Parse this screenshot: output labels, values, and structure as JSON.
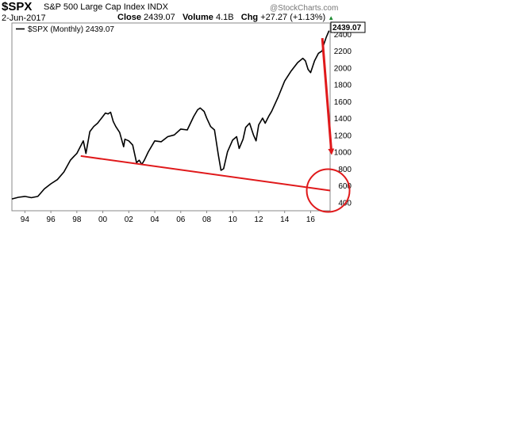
{
  "header": {
    "symbol": "$SPX",
    "name": "S&P 500 Large Cap Index",
    "exchange": "INDX",
    "date": "2-Jun-2017",
    "close_label": "Close",
    "close_value": "2439.07",
    "volume_label": "Volume",
    "volume_value": "4.1B",
    "change_label": "Chg",
    "change_value": "+27.27 (+1.13%)",
    "watermark": "@StockCharts.com"
  },
  "colors": {
    "price_line": "#000000",
    "annotation": "#e0191b",
    "change_up": "#1b8a2f"
  },
  "chart_data": {
    "type": "line",
    "legend": "$SPX (Monthly) 2439.07",
    "last_value": "2439.07",
    "x_tick_labels": [
      "94",
      "96",
      "98",
      "00",
      "02",
      "04",
      "06",
      "08",
      "10",
      "12",
      "14",
      "16"
    ],
    "x_tick_years": [
      1994,
      1996,
      1998,
      2000,
      2002,
      2004,
      2006,
      2008,
      2010,
      2012,
      2014,
      2016
    ],
    "y_tick_labels": [
      "400",
      "600",
      "800",
      "1000",
      "1200",
      "1400",
      "1600",
      "1800",
      "2000",
      "2200",
      "2400"
    ],
    "y_tick_values": [
      400,
      600,
      800,
      1000,
      1200,
      1400,
      1600,
      1800,
      2000,
      2200,
      2400
    ],
    "xlim": [
      1993.0,
      2017.5
    ],
    "ylim": [
      300,
      2530
    ],
    "series": [
      {
        "x": [
          1993.0,
          1993.5,
          1994.0,
          1994.5,
          1995.0,
          1995.5,
          1996.0,
          1996.5,
          1997.0,
          1997.5,
          1997.8,
          1998.0,
          1998.5,
          1998.7,
          1999.0,
          1999.3,
          1999.6,
          1999.8,
          2000.0,
          2000.2,
          2000.4,
          2000.6,
          2000.8,
          2001.0,
          2001.3,
          2001.6,
          2001.7,
          2002.0,
          2002.3,
          2002.6,
          2002.8,
          2003.0,
          2003.2,
          2003.5,
          2004.0,
          2004.5,
          2005.0,
          2005.5,
          2006.0,
          2006.5,
          2007.0,
          2007.3,
          2007.5,
          2007.8,
          2008.0,
          2008.3,
          2008.6,
          2008.9,
          2009.1,
          2009.3,
          2009.6,
          2010.0,
          2010.3,
          2010.5,
          2010.8,
          2011.0,
          2011.3,
          2011.6,
          2011.8,
          2012.0,
          2012.3,
          2012.5,
          2012.8,
          2013.0,
          2013.5,
          2014.0,
          2014.5,
          2015.0,
          2015.4,
          2015.6,
          2015.8,
          2016.0,
          2016.3,
          2016.6,
          2016.9,
          2017.0,
          2017.2,
          2017.42
        ],
        "y": [
          440,
          460,
          470,
          455,
          470,
          560,
          620,
          670,
          760,
          900,
          950,
          980,
          1130,
          980,
          1240,
          1300,
          1340,
          1380,
          1420,
          1460,
          1450,
          1470,
          1360,
          1300,
          1230,
          1060,
          1150,
          1130,
          1080,
          870,
          900,
          850,
          900,
          1000,
          1130,
          1120,
          1180,
          1200,
          1270,
          1260,
          1420,
          1500,
          1520,
          1480,
          1400,
          1300,
          1260,
          960,
          780,
          800,
          1000,
          1140,
          1180,
          1040,
          1150,
          1290,
          1340,
          1200,
          1130,
          1320,
          1400,
          1340,
          1430,
          1480,
          1650,
          1840,
          1960,
          2060,
          2110,
          2080,
          1980,
          1940,
          2080,
          2170,
          2200,
          2270,
          2360,
          2439.07
        ]
      }
    ],
    "annotations": [
      {
        "type": "support_line",
        "x": [
          1998.3,
          2017.5
        ],
        "y": [
          950,
          540
        ]
      },
      {
        "type": "arrow",
        "x": [
          2016.9,
          2017.6
        ],
        "y": [
          2350,
          1000
        ]
      },
      {
        "type": "circle",
        "x": 2017.35,
        "y": 540
      }
    ]
  }
}
